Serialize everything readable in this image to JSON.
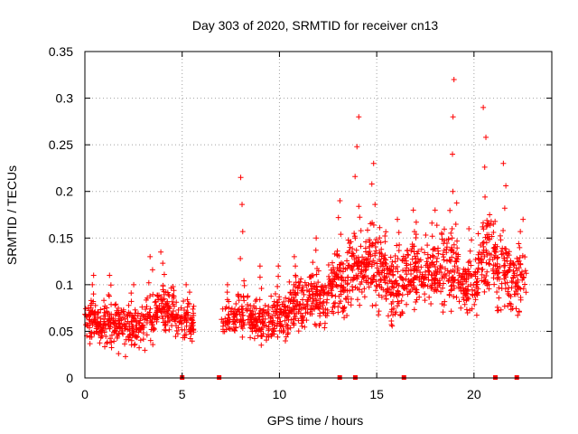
{
  "chart_data": {
    "type": "scatter",
    "title": "Day 303 of 2020, SRMTID for receiver cn13",
    "xlabel": "GPS time / hours",
    "ylabel": "SRMTID / TECUs",
    "xlim": [
      0,
      24
    ],
    "ylim": [
      0,
      0.35
    ],
    "xticks": [
      0,
      5,
      10,
      15,
      20
    ],
    "xtick_labels": [
      "0",
      "5",
      "10",
      "15",
      "20"
    ],
    "yticks": [
      0,
      0.05,
      0.1,
      0.15,
      0.2,
      0.25,
      0.3,
      0.35
    ],
    "ytick_labels": [
      "0",
      "0.05",
      "0.1",
      "0.15",
      "0.2",
      "0.25",
      "0.3",
      "0.35"
    ],
    "grid": true,
    "marker": "plus",
    "color": "#ff0000",
    "gaps_x": [
      5.0,
      6.9,
      13.1,
      13.9,
      16.4,
      21.1,
      22.2
    ],
    "segments": [
      {
        "start": 0.0,
        "end": 1.0,
        "center": 0.06,
        "spread": 0.02,
        "outlier_max": 0.11,
        "density": 42
      },
      {
        "start": 1.0,
        "end": 2.0,
        "center": 0.058,
        "spread": 0.02,
        "outlier_max": 0.11,
        "density": 40
      },
      {
        "start": 2.0,
        "end": 3.0,
        "center": 0.055,
        "spread": 0.022,
        "outlier_max": 0.1,
        "density": 38
      },
      {
        "start": 3.0,
        "end": 3.6,
        "center": 0.06,
        "spread": 0.024,
        "outlier_max": 0.13,
        "density": 30
      },
      {
        "start": 3.6,
        "end": 4.6,
        "center": 0.075,
        "spread": 0.025,
        "outlier_max": 0.135,
        "density": 42
      },
      {
        "start": 4.6,
        "end": 5.6,
        "center": 0.06,
        "spread": 0.02,
        "outlier_max": 0.1,
        "density": 36
      },
      {
        "start": 7.0,
        "end": 7.8,
        "center": 0.06,
        "spread": 0.018,
        "outlier_max": 0.1,
        "density": 28
      },
      {
        "start": 7.8,
        "end": 8.4,
        "center": 0.07,
        "spread": 0.025,
        "outlier_max": 0.215,
        "density": 30
      },
      {
        "start": 8.4,
        "end": 9.5,
        "center": 0.06,
        "spread": 0.022,
        "outlier_max": 0.12,
        "density": 40
      },
      {
        "start": 9.5,
        "end": 10.5,
        "center": 0.065,
        "spread": 0.025,
        "outlier_max": 0.12,
        "density": 40
      },
      {
        "start": 10.5,
        "end": 11.5,
        "center": 0.08,
        "spread": 0.025,
        "outlier_max": 0.13,
        "density": 42
      },
      {
        "start": 11.5,
        "end": 12.5,
        "center": 0.085,
        "spread": 0.028,
        "outlier_max": 0.15,
        "density": 42
      },
      {
        "start": 12.5,
        "end": 13.5,
        "center": 0.1,
        "spread": 0.035,
        "outlier_max": 0.19,
        "density": 44
      },
      {
        "start": 13.5,
        "end": 14.5,
        "center": 0.12,
        "spread": 0.04,
        "outlier_max": 0.28,
        "density": 46
      },
      {
        "start": 14.5,
        "end": 15.5,
        "center": 0.12,
        "spread": 0.04,
        "outlier_max": 0.23,
        "density": 46
      },
      {
        "start": 15.5,
        "end": 16.5,
        "center": 0.1,
        "spread": 0.035,
        "outlier_max": 0.17,
        "density": 44
      },
      {
        "start": 16.5,
        "end": 17.5,
        "center": 0.115,
        "spread": 0.035,
        "outlier_max": 0.18,
        "density": 44
      },
      {
        "start": 17.5,
        "end": 18.3,
        "center": 0.11,
        "spread": 0.035,
        "outlier_max": 0.18,
        "density": 40
      },
      {
        "start": 18.3,
        "end": 19.2,
        "center": 0.12,
        "spread": 0.045,
        "outlier_max": 0.32,
        "density": 44
      },
      {
        "start": 19.2,
        "end": 20.2,
        "center": 0.1,
        "spread": 0.03,
        "outlier_max": 0.16,
        "density": 42
      },
      {
        "start": 20.2,
        "end": 21.2,
        "center": 0.13,
        "spread": 0.045,
        "outlier_max": 0.29,
        "density": 44
      },
      {
        "start": 21.2,
        "end": 22.0,
        "center": 0.11,
        "spread": 0.04,
        "outlier_max": 0.23,
        "density": 40
      },
      {
        "start": 22.0,
        "end": 22.7,
        "center": 0.105,
        "spread": 0.03,
        "outlier_max": 0.17,
        "density": 34
      }
    ]
  }
}
